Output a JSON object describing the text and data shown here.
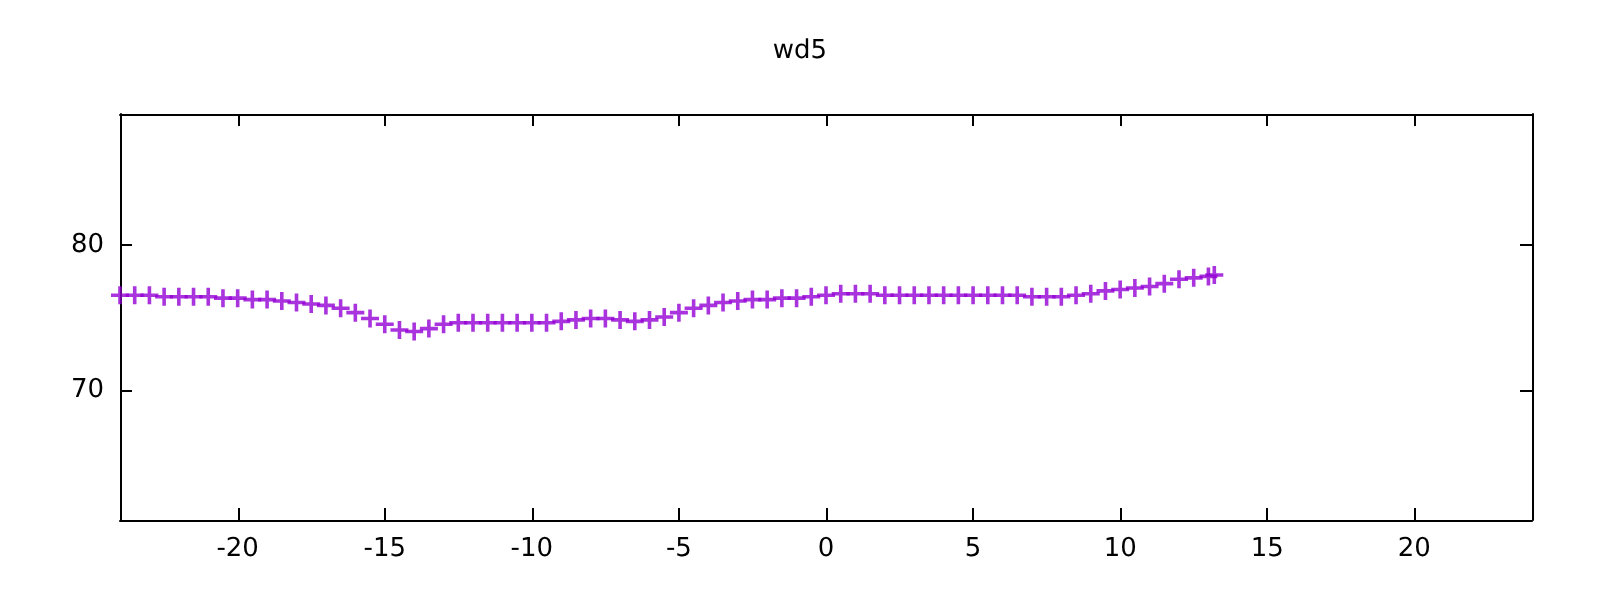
{
  "chart_data": {
    "type": "scatter",
    "title": "wd5",
    "marker": "cross",
    "grid": false,
    "xlim": [
      -24,
      24
    ],
    "xticks": [
      -20,
      -15,
      -10,
      -5,
      0,
      5,
      10,
      15,
      20
    ],
    "ylim": [
      61,
      89
    ],
    "yticks": [
      70,
      80
    ],
    "series": [
      {
        "color": "#9400d3",
        "x": [
          -24,
          -23.5,
          -23,
          -22.5,
          -22,
          -21.5,
          -21,
          -20.5,
          -20,
          -19.5,
          -19,
          -18.5,
          -18,
          -17.5,
          -17,
          -16.5,
          -16,
          -15.5,
          -15,
          -14.5,
          -14,
          -13.5,
          -13,
          -12.5,
          -12,
          -11.5,
          -11,
          -10.5,
          -10,
          -9.5,
          -9,
          -8.5,
          -8,
          -7.5,
          -7,
          -6.5,
          -6,
          -5.5,
          -5,
          -4.5,
          -4,
          -3.5,
          -3,
          -2.5,
          -2,
          -1.5,
          -1,
          -0.5,
          0,
          0.5,
          1,
          1.5,
          2,
          2.5,
          3,
          3.5,
          4,
          4.5,
          5,
          5.5,
          6,
          6.5,
          7,
          7.5,
          8,
          8.5,
          9,
          9.5,
          10,
          10.5,
          11,
          11.5,
          12,
          12.5,
          13,
          13.2
        ],
        "values": [
          76.5,
          76.5,
          76.5,
          76.4,
          76.4,
          76.4,
          76.4,
          76.3,
          76.3,
          76.2,
          76.2,
          76.1,
          76.0,
          75.9,
          75.8,
          75.6,
          75.3,
          74.9,
          74.5,
          74.1,
          74.0,
          74.2,
          74.5,
          74.6,
          74.6,
          74.6,
          74.6,
          74.6,
          74.6,
          74.6,
          74.7,
          74.8,
          74.9,
          74.9,
          74.8,
          74.7,
          74.8,
          75.0,
          75.3,
          75.6,
          75.8,
          76.0,
          76.1,
          76.2,
          76.2,
          76.3,
          76.3,
          76.4,
          76.5,
          76.6,
          76.6,
          76.6,
          76.5,
          76.5,
          76.5,
          76.5,
          76.5,
          76.5,
          76.5,
          76.5,
          76.5,
          76.5,
          76.4,
          76.4,
          76.4,
          76.5,
          76.6,
          76.8,
          76.9,
          77.0,
          77.1,
          77.3,
          77.6,
          77.7,
          77.8,
          77.9
        ]
      }
    ]
  }
}
